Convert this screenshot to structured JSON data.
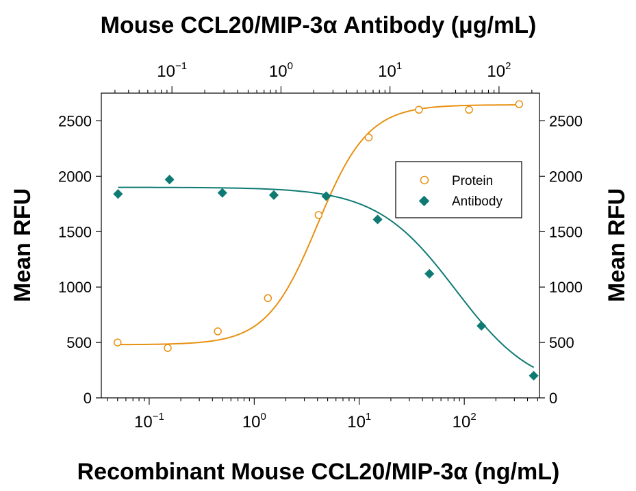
{
  "chart_data": {
    "type": "scatter",
    "title": "Mouse CCL20/MIP-3α Antibody (μg/mL)",
    "xlabel": "Recombinant Mouse CCL20/MIP-3α (ng/mL)",
    "ylabel_left": "Mean RFU",
    "ylabel_right": "Mean RFU",
    "x_scale": "log",
    "xlim": [
      0.035,
      520
    ],
    "x2lim": [
      0.0225,
      235
    ],
    "ylim": [
      0,
      2750
    ],
    "y_ticks": [
      "0",
      "500",
      "1000",
      "1500",
      "2000",
      "2500"
    ],
    "y_tick_values": [
      0,
      500,
      1000,
      1500,
      2000,
      2500
    ],
    "x_ticks": [
      {
        "value": 0.1,
        "base": "10",
        "exp": "−1"
      },
      {
        "value": 1,
        "base": "10",
        "exp": "0"
      },
      {
        "value": 10,
        "base": "10",
        "exp": "1"
      },
      {
        "value": 100,
        "base": "10",
        "exp": "2"
      }
    ],
    "x2_ticks": [
      {
        "value": 0.1,
        "base": "10",
        "exp": "−1"
      },
      {
        "value": 1,
        "base": "10",
        "exp": "0"
      },
      {
        "value": 10,
        "base": "10",
        "exp": "1"
      },
      {
        "value": 100,
        "base": "10",
        "exp": "2"
      }
    ],
    "legend_position": "center-right",
    "series": [
      {
        "name": "Protein",
        "axis": "bottom",
        "marker": "open-circle",
        "color": "#E8900F",
        "x": [
          0.05,
          0.15,
          0.45,
          1.35,
          4.1,
          12.3,
          37,
          111,
          333
        ],
        "y": [
          500,
          450,
          600,
          900,
          1650,
          2350,
          2600,
          2600,
          2650
        ],
        "fit": {
          "bottom": 480,
          "top": 2645,
          "ec50": 4.0,
          "hill": 1.8
        }
      },
      {
        "name": "Antibody",
        "axis": "top",
        "marker": "filled-diamond",
        "color": "#0E7A73",
        "x": [
          0.032,
          0.095,
          0.29,
          0.86,
          2.6,
          7.7,
          23,
          69,
          208
        ],
        "y": [
          1840,
          1970,
          1850,
          1830,
          1820,
          1610,
          1120,
          650,
          200
        ],
        "fit": {
          "bottom": 50,
          "top": 1900,
          "ec50": 40,
          "hill": 1.2
        }
      }
    ]
  }
}
